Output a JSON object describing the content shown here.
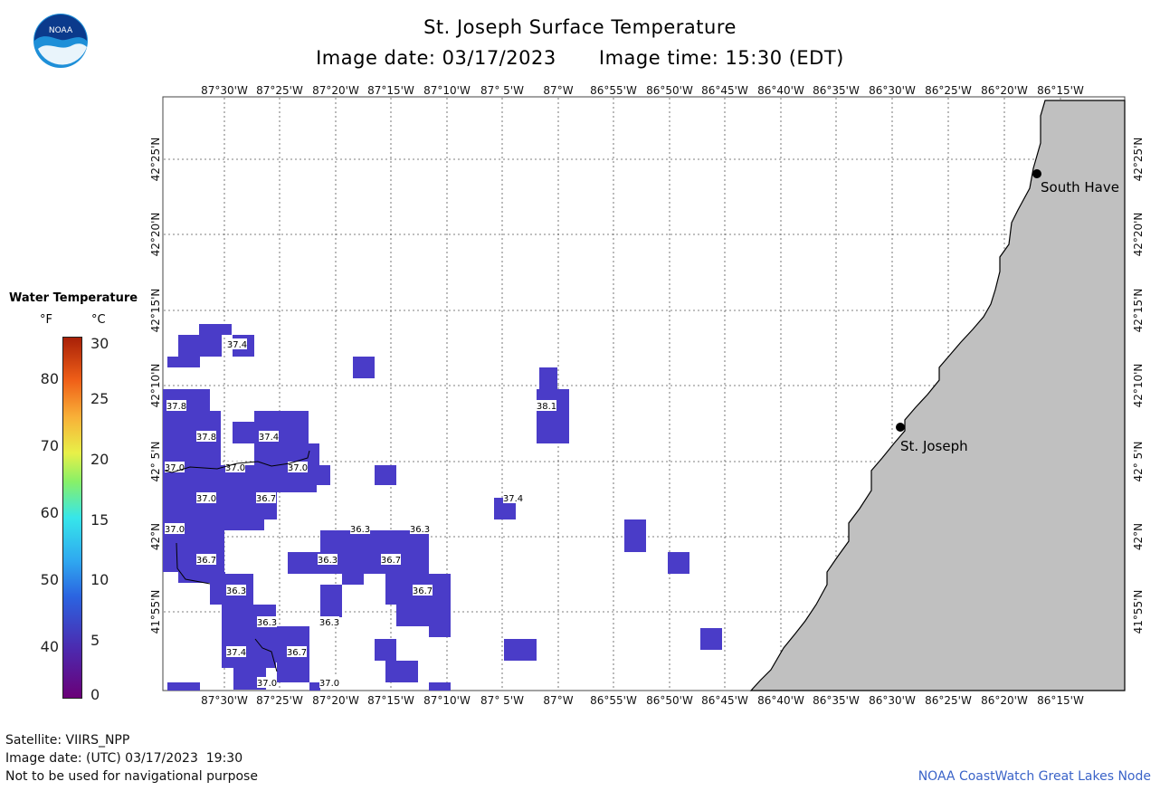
{
  "header": {
    "title": "St. Joseph Surface Temperature",
    "image_date": "Image date: 03/17/2023",
    "image_time": "Image time: 15:30 (EDT)"
  },
  "logo_text": "NOAA",
  "legend": {
    "title": "Water Temperature",
    "unit_f": "°F",
    "unit_c": "°C",
    "f_ticks": [
      "40",
      "50",
      "60",
      "70",
      "80"
    ],
    "c_ticks": [
      "0",
      "5",
      "10",
      "15",
      "20",
      "25",
      "30"
    ]
  },
  "axes": {
    "lon_labels": [
      "87°30'W",
      "87°25'W",
      "87°20'W",
      "87°15'W",
      "87°10'W",
      "87° 5'W",
      "87°W",
      "86°55'W",
      "86°50'W",
      "86°45'W",
      "86°40'W",
      "86°35'W",
      "86°30'W",
      "86°25'W",
      "86°20'W",
      "86°15'W"
    ],
    "lat_labels": [
      "42°25'N",
      "42°20'N",
      "42°15'N",
      "42°10'N",
      "42° 5'N",
      "42°N",
      "41°55'N"
    ]
  },
  "cities": [
    {
      "name": "St. Joseph"
    },
    {
      "name": "South Have"
    }
  ],
  "temperature_cells": [
    {
      "label": "37.4"
    },
    {
      "label": "37.8"
    },
    {
      "label": "37.8"
    },
    {
      "label": "37.4"
    },
    {
      "label": "37.0"
    },
    {
      "label": "37.0"
    },
    {
      "label": "37.0"
    },
    {
      "label": "37.0"
    },
    {
      "label": "36.7"
    },
    {
      "label": "37.0"
    },
    {
      "label": "36.3"
    },
    {
      "label": "36.3"
    },
    {
      "label": "36.7"
    },
    {
      "label": "36.3"
    },
    {
      "label": "36.7"
    },
    {
      "label": "36.7"
    },
    {
      "label": "36.3"
    },
    {
      "label": "36.3"
    },
    {
      "label": "36.3"
    },
    {
      "label": "37.4"
    },
    {
      "label": "36.7"
    },
    {
      "label": "37.0"
    },
    {
      "label": "37.0"
    },
    {
      "label": "38.1"
    },
    {
      "label": "37.4"
    }
  ],
  "colors": {
    "water_cell": "#4a3cc8",
    "water_cell_light": "#5342c8",
    "land": "#c0c0c0",
    "grid": "#555555"
  },
  "footer": {
    "satellite": "Satellite: VIIRS_NPP",
    "utc_date": "Image date: (UTC) 03/17/2023  19:30",
    "disclaimer": "Not to be used for navigational purpose",
    "credit": "NOAA CoastWatch Great Lakes Node"
  }
}
